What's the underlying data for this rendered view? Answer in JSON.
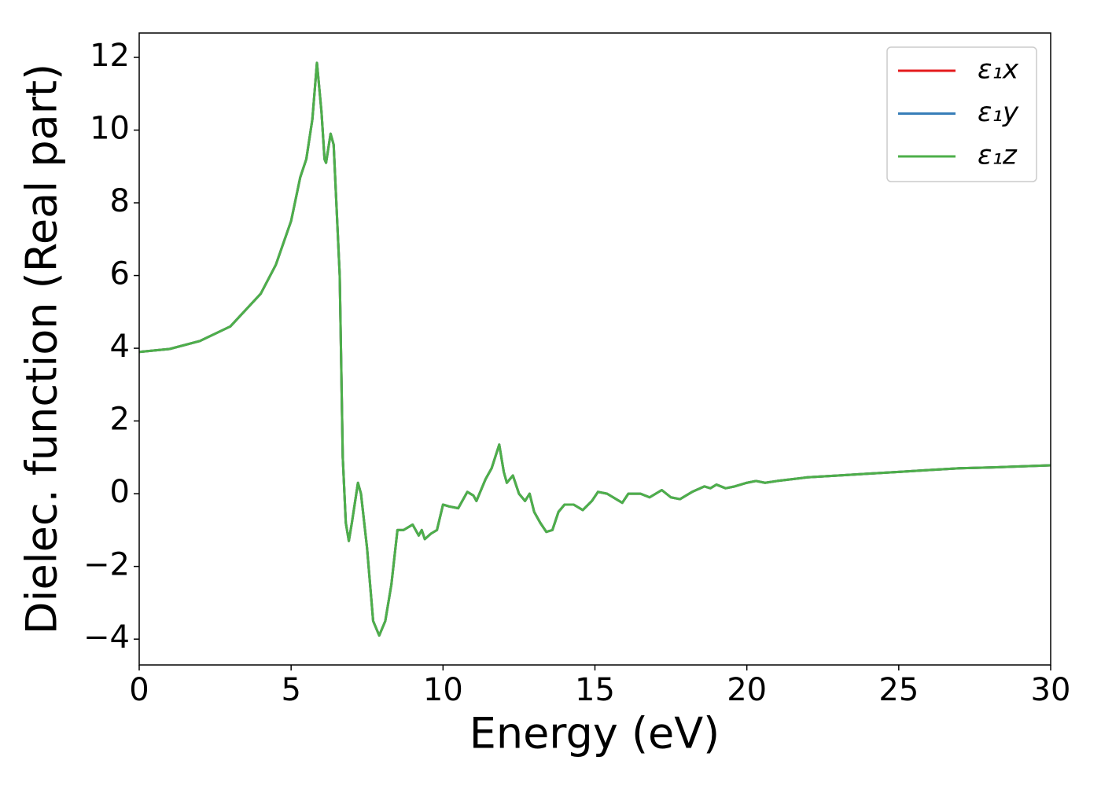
{
  "chart_data": {
    "type": "line",
    "xlabel": "Energy (eV)",
    "ylabel": "Dielec. function (Real part)",
    "xlim": [
      0,
      30
    ],
    "ylim": [
      -4.71,
      12.67
    ],
    "xticks": [
      0,
      5,
      10,
      15,
      20,
      25,
      30
    ],
    "yticks": [
      {
        "value": -4,
        "label": "−4"
      },
      {
        "value": -2,
        "label": "−2"
      },
      0,
      2,
      4,
      6,
      8,
      10,
      12
    ],
    "legend": "upper right",
    "x": [
      0,
      1,
      2,
      3,
      4,
      4.5,
      5,
      5.3,
      5.5,
      5.7,
      5.85,
      6.0,
      6.1,
      6.15,
      6.3,
      6.4,
      6.6,
      6.7,
      6.8,
      6.9,
      7.0,
      7.2,
      7.3,
      7.5,
      7.7,
      7.9,
      8.1,
      8.3,
      8.5,
      8.7,
      9.0,
      9.2,
      9.3,
      9.4,
      9.6,
      9.8,
      10.0,
      10.2,
      10.5,
      10.8,
      11.0,
      11.1,
      11.4,
      11.6,
      11.85,
      12.0,
      12.1,
      12.3,
      12.5,
      12.7,
      12.85,
      13.0,
      13.2,
      13.4,
      13.6,
      13.8,
      14.0,
      14.3,
      14.6,
      14.9,
      15.1,
      15.4,
      15.7,
      15.9,
      16.1,
      16.5,
      16.8,
      17.2,
      17.5,
      17.8,
      18.2,
      18.6,
      18.8,
      19.0,
      19.3,
      19.6,
      20.0,
      20.3,
      20.6,
      21,
      22,
      23,
      24,
      25,
      26,
      27,
      28,
      29,
      30
    ],
    "series": [
      {
        "name": "ε₁x",
        "color": "#e41a1c",
        "values": [
          3.9,
          3.98,
          4.2,
          4.6,
          5.5,
          6.3,
          7.5,
          8.7,
          9.2,
          10.3,
          11.85,
          10.5,
          9.2,
          9.1,
          9.9,
          9.6,
          6,
          1,
          -0.8,
          -1.3,
          -0.8,
          0.3,
          0,
          -1.5,
          -3.5,
          -3.9,
          -3.5,
          -2.5,
          -1.0,
          -1.0,
          -0.85,
          -1.15,
          -1.0,
          -1.25,
          -1.1,
          -1.0,
          -0.3,
          -0.35,
          -0.4,
          0.05,
          -0.05,
          -0.2,
          0.4,
          0.7,
          1.35,
          0.6,
          0.3,
          0.5,
          0,
          -0.2,
          0.0,
          -0.5,
          -0.8,
          -1.05,
          -1.0,
          -0.5,
          -0.3,
          -0.3,
          -0.45,
          -0.2,
          0.05,
          0.0,
          -0.15,
          -0.25,
          0.0,
          0.0,
          -0.1,
          0.1,
          -0.1,
          -0.15,
          0.05,
          0.2,
          0.15,
          0.25,
          0.15,
          0.2,
          0.3,
          0.35,
          0.3,
          0.35,
          0.45,
          0.5,
          0.55,
          0.6,
          0.65,
          0.7,
          0.72,
          0.75,
          0.78
        ]
      },
      {
        "name": "ε₁y",
        "color": "#377eb8",
        "values": [
          3.9,
          3.98,
          4.2,
          4.6,
          5.5,
          6.3,
          7.5,
          8.7,
          9.2,
          10.3,
          11.85,
          10.5,
          9.2,
          9.1,
          9.9,
          9.6,
          6,
          1,
          -0.8,
          -1.3,
          -0.8,
          0.3,
          0,
          -1.5,
          -3.5,
          -3.9,
          -3.5,
          -2.5,
          -1.0,
          -1.0,
          -0.85,
          -1.15,
          -1.0,
          -1.25,
          -1.1,
          -1.0,
          -0.3,
          -0.35,
          -0.4,
          0.05,
          -0.05,
          -0.2,
          0.4,
          0.7,
          1.35,
          0.6,
          0.3,
          0.5,
          0,
          -0.2,
          0.0,
          -0.5,
          -0.8,
          -1.05,
          -1.0,
          -0.5,
          -0.3,
          -0.3,
          -0.45,
          -0.2,
          0.05,
          0.0,
          -0.15,
          -0.25,
          0.0,
          0.0,
          -0.1,
          0.1,
          -0.1,
          -0.15,
          0.05,
          0.2,
          0.15,
          0.25,
          0.15,
          0.2,
          0.3,
          0.35,
          0.3,
          0.35,
          0.45,
          0.5,
          0.55,
          0.6,
          0.65,
          0.7,
          0.72,
          0.75,
          0.78
        ]
      },
      {
        "name": "ε₁z",
        "color": "#4daf4a",
        "values": [
          3.9,
          3.98,
          4.2,
          4.6,
          5.5,
          6.3,
          7.5,
          8.7,
          9.2,
          10.3,
          11.85,
          10.5,
          9.2,
          9.1,
          9.9,
          9.6,
          6,
          1,
          -0.8,
          -1.3,
          -0.8,
          0.3,
          0,
          -1.5,
          -3.5,
          -3.9,
          -3.5,
          -2.5,
          -1.0,
          -1.0,
          -0.85,
          -1.15,
          -1.0,
          -1.25,
          -1.1,
          -1.0,
          -0.3,
          -0.35,
          -0.4,
          0.05,
          -0.05,
          -0.2,
          0.4,
          0.7,
          1.35,
          0.6,
          0.3,
          0.5,
          0,
          -0.2,
          0.0,
          -0.5,
          -0.8,
          -1.05,
          -1.0,
          -0.5,
          -0.3,
          -0.3,
          -0.45,
          -0.2,
          0.05,
          0.0,
          -0.15,
          -0.25,
          0.0,
          0.0,
          -0.1,
          0.1,
          -0.1,
          -0.15,
          0.05,
          0.2,
          0.15,
          0.25,
          0.15,
          0.2,
          0.3,
          0.35,
          0.3,
          0.35,
          0.45,
          0.5,
          0.55,
          0.6,
          0.65,
          0.7,
          0.72,
          0.75,
          0.78
        ]
      }
    ]
  }
}
